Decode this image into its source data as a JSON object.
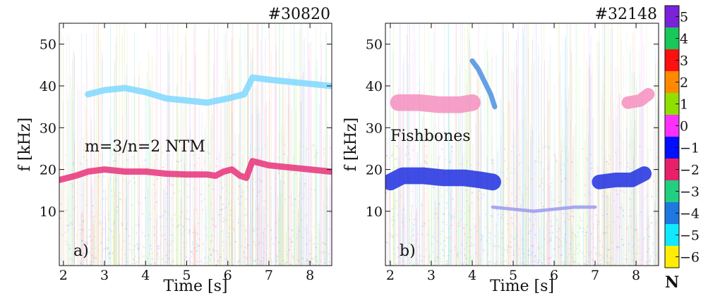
{
  "chart_data": [
    {
      "type": "spectrogram",
      "title": "#30820",
      "panel_label": "a)",
      "annotation": "m=3/n=2 NTM",
      "xlabel": "Time [s]",
      "ylabel": "f [kHz]",
      "xlim": [
        1.9,
        8.53
      ],
      "ylim": [
        -3,
        55
      ],
      "xticks": [
        2,
        3,
        4,
        5,
        6,
        7,
        8
      ],
      "yticks": [
        10,
        20,
        30,
        40,
        50
      ],
      "series": [
        {
          "color": "#e8337a",
          "spread": 1.5,
          "x": [
            1.9,
            2.3,
            2.6,
            3.0,
            3.5,
            4.0,
            4.5,
            5.0,
            5.5,
            5.7,
            5.9,
            6.1,
            6.3,
            6.45,
            6.6,
            7.0,
            7.5,
            8.0,
            8.5
          ],
          "values": [
            17.5,
            18.5,
            19.5,
            20,
            19.5,
            19.5,
            19,
            18.8,
            18.8,
            18.5,
            19.5,
            20,
            18.5,
            18,
            22,
            21,
            20.5,
            20,
            19.5
          ]
        },
        {
          "color": "#7fd8ff",
          "spread": 1.5,
          "x": [
            2.6,
            3.0,
            3.5,
            4.0,
            4.5,
            5.0,
            5.5,
            6.0,
            6.4,
            6.6,
            7.0,
            7.5,
            8.0,
            8.5
          ],
          "values": [
            38,
            39,
            39.5,
            38.5,
            37,
            36.5,
            36,
            37,
            38,
            42,
            41.5,
            41,
            40.5,
            40
          ]
        }
      ]
    },
    {
      "type": "spectrogram",
      "title": "#32148",
      "panel_label": "b)",
      "annotation": "Fishbones",
      "xlabel": "Time [s]",
      "ylabel": "f [kHz]",
      "xlim": [
        1.88,
        8.55
      ],
      "ylim": [
        -3,
        55
      ],
      "xticks": [
        2,
        3,
        4,
        5,
        6,
        7,
        8
      ],
      "yticks": [
        10,
        20,
        30,
        40,
        50
      ],
      "series": [
        {
          "color": "#1f2fe0",
          "spread": 4,
          "x": [
            2.0,
            2.3,
            2.8,
            3.3,
            3.8,
            4.2,
            4.5
          ],
          "values": [
            17,
            18.5,
            18.5,
            18,
            18,
            17.5,
            17
          ]
        },
        {
          "color": "#1f2fe0",
          "spread": 3.5,
          "x": [
            7.1,
            7.5,
            7.9,
            8.2
          ],
          "values": [
            17,
            17.5,
            17.5,
            19
          ]
        },
        {
          "color": "#f48fc0",
          "spread": 4,
          "x": [
            2.2,
            2.7,
            3.2,
            3.7,
            4.0
          ],
          "values": [
            36,
            36,
            35.5,
            35.5,
            36
          ]
        },
        {
          "color": "#f48fc0",
          "spread": 3,
          "x": [
            7.8,
            8.1,
            8.3
          ],
          "values": [
            36,
            36.5,
            38
          ]
        },
        {
          "color": "#4a8fe0",
          "spread": 1.2,
          "x": [
            4.0,
            4.15,
            4.3,
            4.45,
            4.55
          ],
          "values": [
            46,
            44,
            41,
            38,
            35
          ]
        },
        {
          "color": "#9a9aee",
          "spread": 0.8,
          "x": [
            4.5,
            5.0,
            5.5,
            6.0,
            6.5,
            7.0
          ],
          "values": [
            11,
            10.5,
            10,
            10.5,
            11,
            11
          ]
        }
      ]
    },
    {
      "type": "colorbar",
      "label": "N",
      "ylim": [
        -6.5,
        5.5
      ],
      "ticks": [
        5,
        4,
        3,
        2,
        1,
        0,
        {
          "value": -1,
          "label": "−1"
        },
        {
          "value": -2,
          "label": "−2"
        },
        {
          "value": -3,
          "label": "−3"
        },
        {
          "value": -4,
          "label": "−4"
        },
        {
          "value": -5,
          "label": "−5"
        },
        {
          "value": -6,
          "label": "−6"
        }
      ],
      "colors": [
        "#7a22d8",
        "#18c858",
        "#ff1010",
        "#ff8a00",
        "#8fe000",
        "#ff30ff",
        "#0010ff",
        "#e8206a",
        "#20d080",
        "#1e78e0",
        "#10e8ff",
        "#ffee00"
      ]
    }
  ]
}
